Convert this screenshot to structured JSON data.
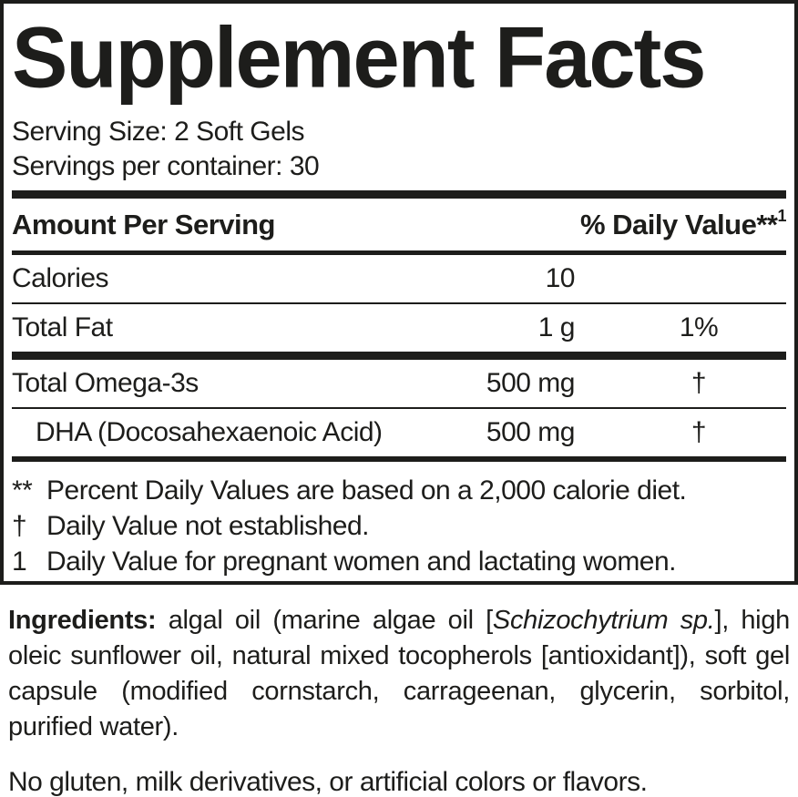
{
  "title": "Supplement Facts",
  "serving": {
    "size_line": "Serving Size: 2 Soft Gels",
    "per_container_line": "Servings per container: 30"
  },
  "table": {
    "header": {
      "amount_label": "Amount Per Serving",
      "dv_label": "% Daily Value**",
      "dv_superscript": "1"
    },
    "rows": [
      {
        "name": "Calories",
        "amount": "10",
        "dv": ""
      },
      {
        "name": "Total Fat",
        "amount": "1 g",
        "dv": "1%"
      },
      {
        "name": "Total Omega-3s",
        "amount": "500 mg",
        "dv": "†"
      },
      {
        "name": "DHA (Docosahexaenoic Acid)",
        "amount": "500 mg",
        "dv": "†"
      }
    ]
  },
  "footnotes": [
    {
      "marker": "**",
      "text": "Percent Daily Values are based on a 2,000 calorie diet."
    },
    {
      "marker": "†",
      "text": "Daily Value not established."
    },
    {
      "marker": "1",
      "text": "Daily Value for pregnant women and lactating women."
    }
  ],
  "ingredients": {
    "label": "Ingredients:",
    "part1": " algal oil (marine algae oil [",
    "species": "Schizochytrium sp.",
    "part2": "], high oleic sunflower oil, natural mixed tocopherols [antioxidant]), soft gel capsule (modified cornstarch, carrageenan, glycerin, sorbitol, purified water)."
  },
  "allergen_statement": "No gluten, milk derivatives, or artificial colors or flavors.",
  "colors": {
    "text": "#1d1d1b",
    "background": "#ffffff",
    "rule": "#1d1d1b"
  }
}
